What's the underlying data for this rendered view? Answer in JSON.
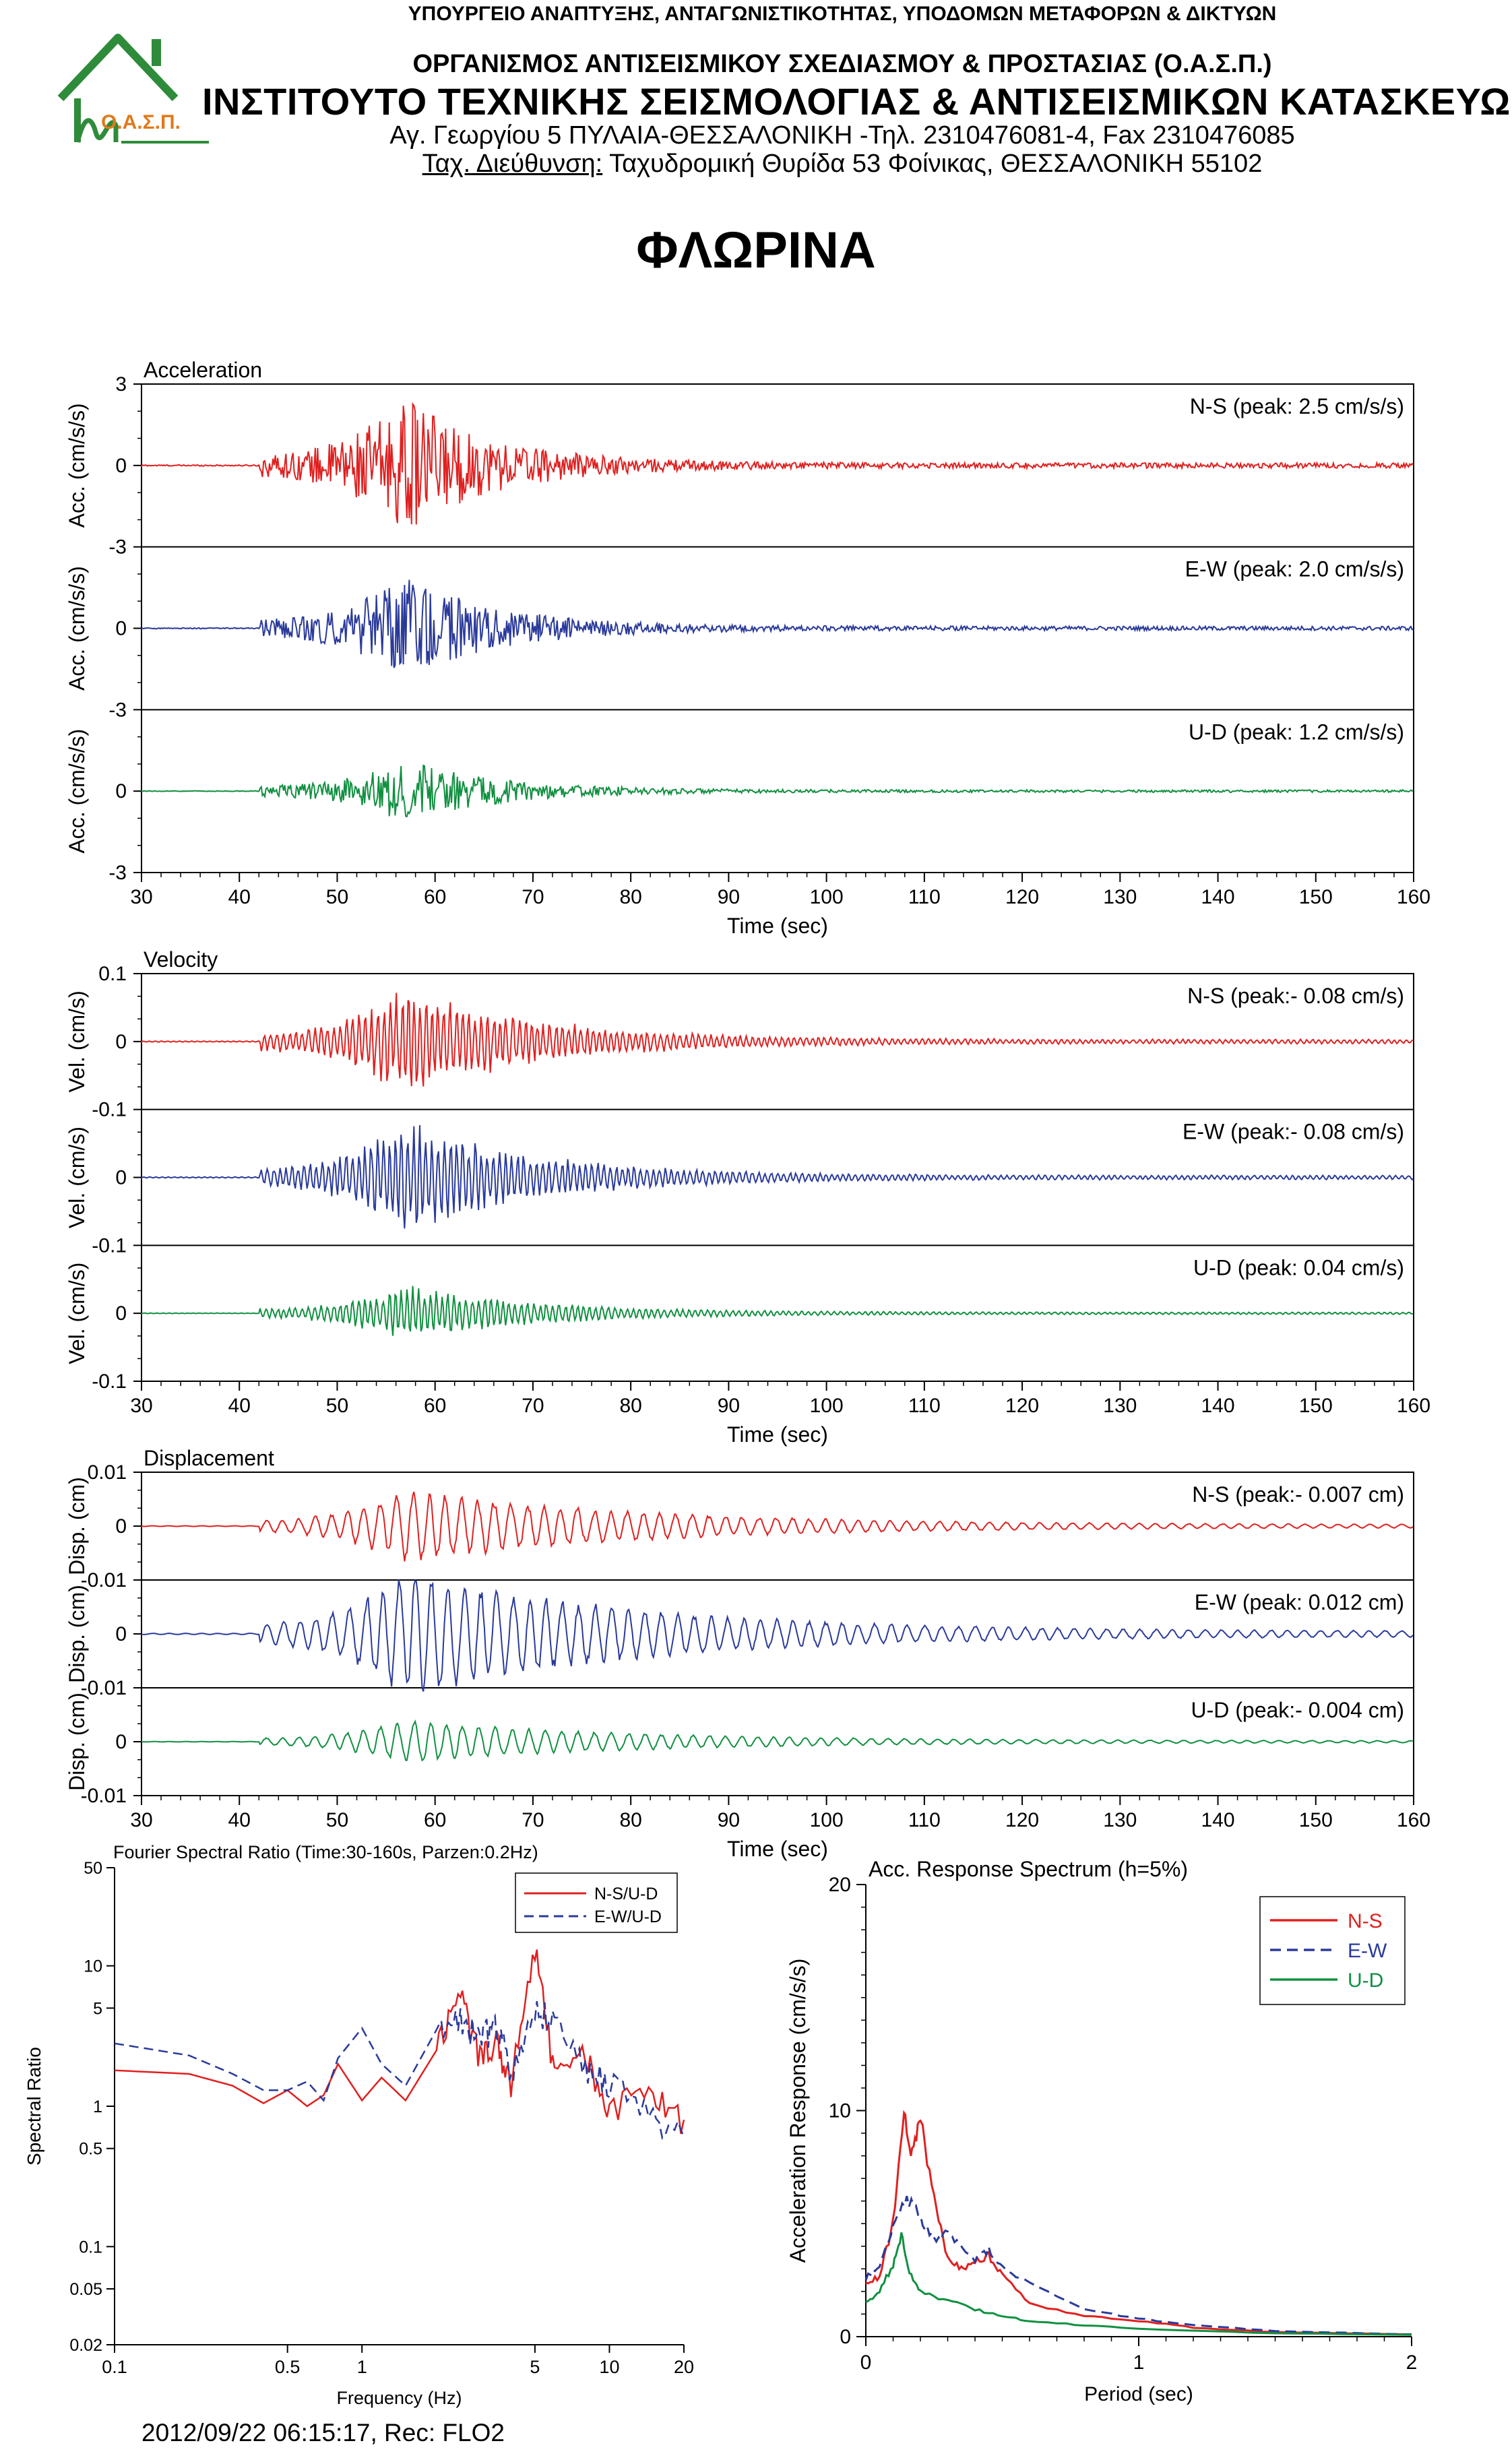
{
  "header": {
    "ministry": "ΥΠΟΥΡΓΕΙΟ ΑΝΑΠΤΥΞΗΣ, ΑΝΤΑΓΩΝΙΣΤΙΚΟΤΗΤΑΣ, ΥΠΟΔΟΜΩΝ ΜΕΤΑΦΟΡΩΝ & ΔΙΚΤΥΩΝ",
    "organization": "ΟΡΓΑΝΙΣΜΟΣ ΑΝΤΙΣΕΙΣΜΙΚΟΥ ΣΧΕΔΙΑΣΜΟΥ & ΠΡΟΣΤΑΣΙΑΣ (Ο.Α.Σ.Π.)",
    "institute": "ΙΝΣΤΙΤΟΥΤΟ ΤΕΧΝΙΚΗΣ ΣΕΙΣΜΟΛΟΓΙΑΣ & ΑΝΤΙΣΕΙΣΜΙΚΩΝ ΚΑΤΑΣΚΕΥΩΝ",
    "address": "Αγ. Γεωργίου 5 ΠΥΛΑΙΑ-ΘΕΣΣΑΛΟΝΙΚΗ -Τηλ. 2310476081-4, Fax 2310476085",
    "postal_label": "Ταχ. Διεύθυνση:",
    "postal_value": " Ταχυδρομική Θυρίδα 53 Φοίνικας, ΘΕΣΣΑΛΟΝΙΚΗ 55102",
    "logo_text": "Ο.Α.Σ.Π.",
    "logo_color": "#2e8b3a",
    "logo_text_color": "#e07a1c"
  },
  "station_title": "ΦΛΩΡΙΝΑ",
  "footer": "2012/09/22 06:15:17, Rec: FLO2",
  "colors": {
    "ns": "#e02020",
    "ew": "#2a3a9a",
    "ud": "#109040"
  },
  "chart_data": [
    {
      "type": "line",
      "title": "Acceleration",
      "xlabel": "Time (sec)",
      "xlim": [
        30,
        160
      ],
      "xticks": [
        30,
        40,
        50,
        60,
        70,
        80,
        90,
        100,
        110,
        120,
        130,
        140,
        150,
        160
      ],
      "panel_ylim": [
        -3,
        3
      ],
      "yticks": [
        "3",
        "0",
        "-3",
        "0",
        "-3",
        "0",
        "-3"
      ],
      "ylabel": "Acc. (cm/s/s)",
      "series": [
        {
          "name": "N-S",
          "label": "N-S (peak: 2.5 cm/s/s)",
          "peak": 2.5,
          "color": "#e02020",
          "onset": 42,
          "decay": 28,
          "kind": "acc"
        },
        {
          "name": "E-W",
          "label": "E-W (peak: 2.0 cm/s/s)",
          "peak": 2.0,
          "color": "#2a3a9a",
          "onset": 42,
          "decay": 28,
          "kind": "acc"
        },
        {
          "name": "U-D",
          "label": "U-D (peak: 1.2 cm/s/s)",
          "peak": 1.2,
          "color": "#109040",
          "onset": 42,
          "decay": 28,
          "kind": "acc"
        }
      ]
    },
    {
      "type": "line",
      "title": "Velocity",
      "xlabel": "Time (sec)",
      "xlim": [
        30,
        160
      ],
      "xticks": [
        30,
        40,
        50,
        60,
        70,
        80,
        90,
        100,
        110,
        120,
        130,
        140,
        150,
        160
      ],
      "panel_ylim": [
        -0.1,
        0.1
      ],
      "yticks": [
        "0.1",
        "0",
        "-0.1",
        "0",
        "-0.1",
        "0",
        "-0.1"
      ],
      "ylabel": "Vel. (cm/s)",
      "series": [
        {
          "name": "N-S",
          "label": "N-S (peak:- 0.08 cm/s)",
          "peak": 0.08,
          "color": "#e02020",
          "onset": 42,
          "decay": 40,
          "kind": "vel"
        },
        {
          "name": "E-W",
          "label": "E-W (peak:- 0.08 cm/s)",
          "peak": 0.08,
          "color": "#2a3a9a",
          "onset": 42,
          "decay": 40,
          "kind": "vel"
        },
        {
          "name": "U-D",
          "label": "U-D (peak: 0.04 cm/s)",
          "peak": 0.04,
          "color": "#109040",
          "onset": 42,
          "decay": 40,
          "kind": "vel"
        }
      ]
    },
    {
      "type": "line",
      "title": "Displacement",
      "xlabel": "Time (sec)",
      "xlim": [
        30,
        160
      ],
      "xticks": [
        30,
        40,
        50,
        60,
        70,
        80,
        90,
        100,
        110,
        120,
        130,
        140,
        150,
        160
      ],
      "panel_ylim": [
        -0.01,
        0.01
      ],
      "yticks": [
        "0.01",
        "0",
        "-0.01",
        "0",
        "-0.01",
        "0",
        "-0.01"
      ],
      "ylabel": "Disp. (cm)",
      "series": [
        {
          "name": "N-S",
          "label": "N-S (peak:- 0.007 cm)",
          "peak": 0.007,
          "color": "#e02020",
          "onset": 42,
          "decay": 70,
          "kind": "disp"
        },
        {
          "name": "E-W",
          "label": "E-W (peak: 0.012 cm)",
          "peak": 0.012,
          "color": "#2a3a9a",
          "onset": 42,
          "decay": 70,
          "kind": "disp"
        },
        {
          "name": "U-D",
          "label": "U-D (peak:- 0.004 cm)",
          "peak": 0.004,
          "color": "#109040",
          "onset": 42,
          "decay": 70,
          "kind": "disp"
        }
      ]
    },
    {
      "type": "line",
      "title": "Fourier Spectral Ratio (Time:30-160s, Parzen:0.2Hz)",
      "xlabel": "Frequency (Hz)",
      "ylabel": "Spectral Ratio",
      "xscale": "log",
      "yscale": "log",
      "xlim": [
        0.1,
        20
      ],
      "ylim": [
        0.02,
        50
      ],
      "xticks": [
        0.1,
        0.5,
        1,
        5,
        10,
        20
      ],
      "yticks": [
        0.02,
        0.05,
        0.1,
        0.5,
        1,
        5,
        10,
        50
      ],
      "legend_position": "top-right",
      "series": [
        {
          "name": "N-S/U-D",
          "color": "#e02020",
          "dash": false,
          "x": [
            0.1,
            0.2,
            0.3,
            0.4,
            0.5,
            0.6,
            0.7,
            0.8,
            1.0,
            1.2,
            1.5,
            2.0,
            2.5,
            3.0,
            3.5,
            4.0,
            5.0,
            6.0,
            8.0,
            10,
            15,
            20
          ],
          "y": [
            1.8,
            1.7,
            1.4,
            1.05,
            1.3,
            1.0,
            1.2,
            2.0,
            1.1,
            1.6,
            1.1,
            2.5,
            6.5,
            2.2,
            2.8,
            1.5,
            13.5,
            1.8,
            2.2,
            1.0,
            1.2,
            0.8
          ]
        },
        {
          "name": "E-W/U-D",
          "color": "#2a3a9a",
          "dash": true,
          "x": [
            0.1,
            0.2,
            0.3,
            0.4,
            0.5,
            0.6,
            0.7,
            0.8,
            1.0,
            1.2,
            1.5,
            2.0,
            2.5,
            3.0,
            3.5,
            4.0,
            5.0,
            6.0,
            8.0,
            10,
            15,
            20
          ],
          "y": [
            2.8,
            2.3,
            1.7,
            1.3,
            1.3,
            1.5,
            1.1,
            2.2,
            3.6,
            2.0,
            1.4,
            3.5,
            4.5,
            3.0,
            4.0,
            1.8,
            5.0,
            4.0,
            1.8,
            1.5,
            0.8,
            0.6
          ]
        }
      ]
    },
    {
      "type": "line",
      "title": "Acc. Response Spectrum (h=5%)",
      "xlabel": "Period (sec)",
      "ylabel": "Acceleration Response (cm/s/s)",
      "xlim": [
        0,
        2
      ],
      "ylim": [
        0,
        20
      ],
      "xticks": [
        0,
        1,
        2
      ],
      "yticks": [
        0,
        10,
        20
      ],
      "legend_position": "top-right",
      "series": [
        {
          "name": "N-S",
          "color": "#e02020",
          "dash": false,
          "x": [
            0.0,
            0.05,
            0.1,
            0.14,
            0.17,
            0.2,
            0.25,
            0.3,
            0.35,
            0.4,
            0.45,
            0.5,
            0.6,
            0.8,
            1.0,
            1.2,
            1.5,
            2.0
          ],
          "y": [
            2.4,
            2.6,
            5.0,
            9.8,
            8.0,
            9.8,
            6.0,
            3.5,
            3.0,
            3.3,
            3.6,
            2.7,
            1.5,
            0.9,
            0.7,
            0.4,
            0.2,
            0.1
          ]
        },
        {
          "name": "E-W",
          "color": "#2a3a9a",
          "dash": true,
          "x": [
            0.0,
            0.05,
            0.1,
            0.15,
            0.2,
            0.25,
            0.3,
            0.35,
            0.4,
            0.45,
            0.5,
            0.6,
            0.8,
            1.0,
            1.2,
            1.5,
            2.0
          ],
          "y": [
            2.6,
            3.2,
            4.8,
            6.2,
            5.2,
            4.4,
            4.5,
            4.0,
            3.4,
            3.8,
            3.2,
            2.3,
            1.2,
            0.8,
            0.5,
            0.25,
            0.1
          ]
        },
        {
          "name": "U-D",
          "color": "#109040",
          "dash": false,
          "x": [
            0.0,
            0.05,
            0.1,
            0.13,
            0.16,
            0.2,
            0.3,
            0.4,
            0.5,
            0.6,
            0.8,
            1.0,
            1.5,
            2.0
          ],
          "y": [
            1.5,
            2.0,
            3.2,
            4.5,
            2.8,
            2.0,
            1.6,
            1.2,
            0.9,
            0.7,
            0.5,
            0.35,
            0.15,
            0.08
          ]
        }
      ]
    }
  ]
}
